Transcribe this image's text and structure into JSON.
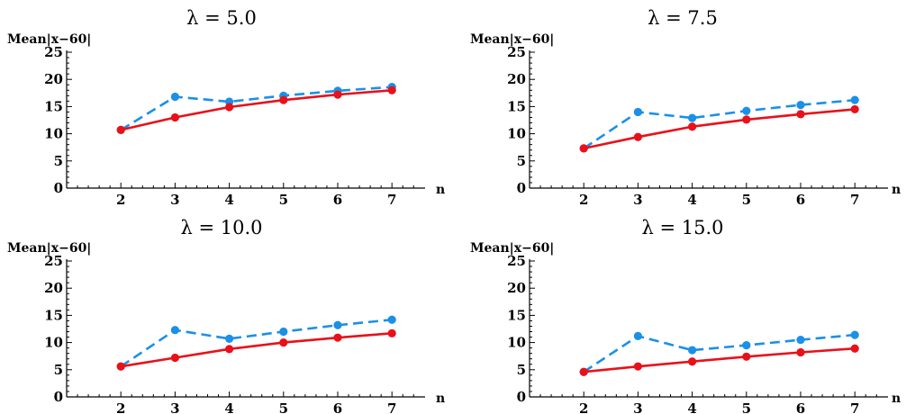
{
  "chart_data": [
    {
      "type": "line",
      "title": "λ = 5.0",
      "ylabel": "Mean|x−60|",
      "xlabel": "n",
      "x": [
        2,
        3,
        4,
        5,
        6,
        7
      ],
      "xlim": [
        1,
        7.4
      ],
      "ylim": [
        0,
        25
      ],
      "yticks": [
        0,
        5,
        10,
        15,
        20,
        25
      ],
      "series": [
        {
          "color": "#e8111a",
          "style": "solid",
          "values": [
            10.7,
            13.0,
            14.9,
            16.2,
            17.2,
            18.0
          ]
        },
        {
          "color": "#1a90e8",
          "style": "dashed",
          "values": [
            10.7,
            16.8,
            15.9,
            17.0,
            17.9,
            18.6
          ]
        }
      ]
    },
    {
      "type": "line",
      "title": "λ = 7.5",
      "ylabel": "Mean|x−60|",
      "xlabel": "n",
      "x": [
        2,
        3,
        4,
        5,
        6,
        7
      ],
      "xlim": [
        1,
        7.4
      ],
      "ylim": [
        0,
        25
      ],
      "yticks": [
        0,
        5,
        10,
        15,
        20,
        25
      ],
      "series": [
        {
          "color": "#e8111a",
          "style": "solid",
          "values": [
            7.3,
            9.4,
            11.3,
            12.6,
            13.6,
            14.5
          ]
        },
        {
          "color": "#1a90e8",
          "style": "dashed",
          "values": [
            7.3,
            14.0,
            12.9,
            14.2,
            15.3,
            16.2
          ]
        }
      ]
    },
    {
      "type": "line",
      "title": "λ = 10.0",
      "ylabel": "Mean|x−60|",
      "xlabel": "n",
      "x": [
        2,
        3,
        4,
        5,
        6,
        7
      ],
      "xlim": [
        1,
        7.4
      ],
      "ylim": [
        0,
        25
      ],
      "yticks": [
        0,
        5,
        10,
        15,
        20,
        25
      ],
      "series": [
        {
          "color": "#e8111a",
          "style": "solid",
          "values": [
            5.6,
            7.2,
            8.8,
            10.0,
            10.9,
            11.7
          ]
        },
        {
          "color": "#1a90e8",
          "style": "dashed",
          "values": [
            5.6,
            12.3,
            10.7,
            12.0,
            13.2,
            14.2
          ]
        }
      ]
    },
    {
      "type": "line",
      "title": "λ = 15.0",
      "ylabel": "Mean|x−60|",
      "xlabel": "n",
      "x": [
        2,
        3,
        4,
        5,
        6,
        7
      ],
      "xlim": [
        1,
        7.4
      ],
      "ylim": [
        0,
        25
      ],
      "yticks": [
        0,
        5,
        10,
        15,
        20,
        25
      ],
      "series": [
        {
          "color": "#e8111a",
          "style": "solid",
          "values": [
            4.6,
            5.6,
            6.5,
            7.4,
            8.2,
            8.9
          ]
        },
        {
          "color": "#1a90e8",
          "style": "dashed",
          "values": [
            4.6,
            11.2,
            8.6,
            9.5,
            10.5,
            11.4
          ]
        }
      ]
    }
  ]
}
